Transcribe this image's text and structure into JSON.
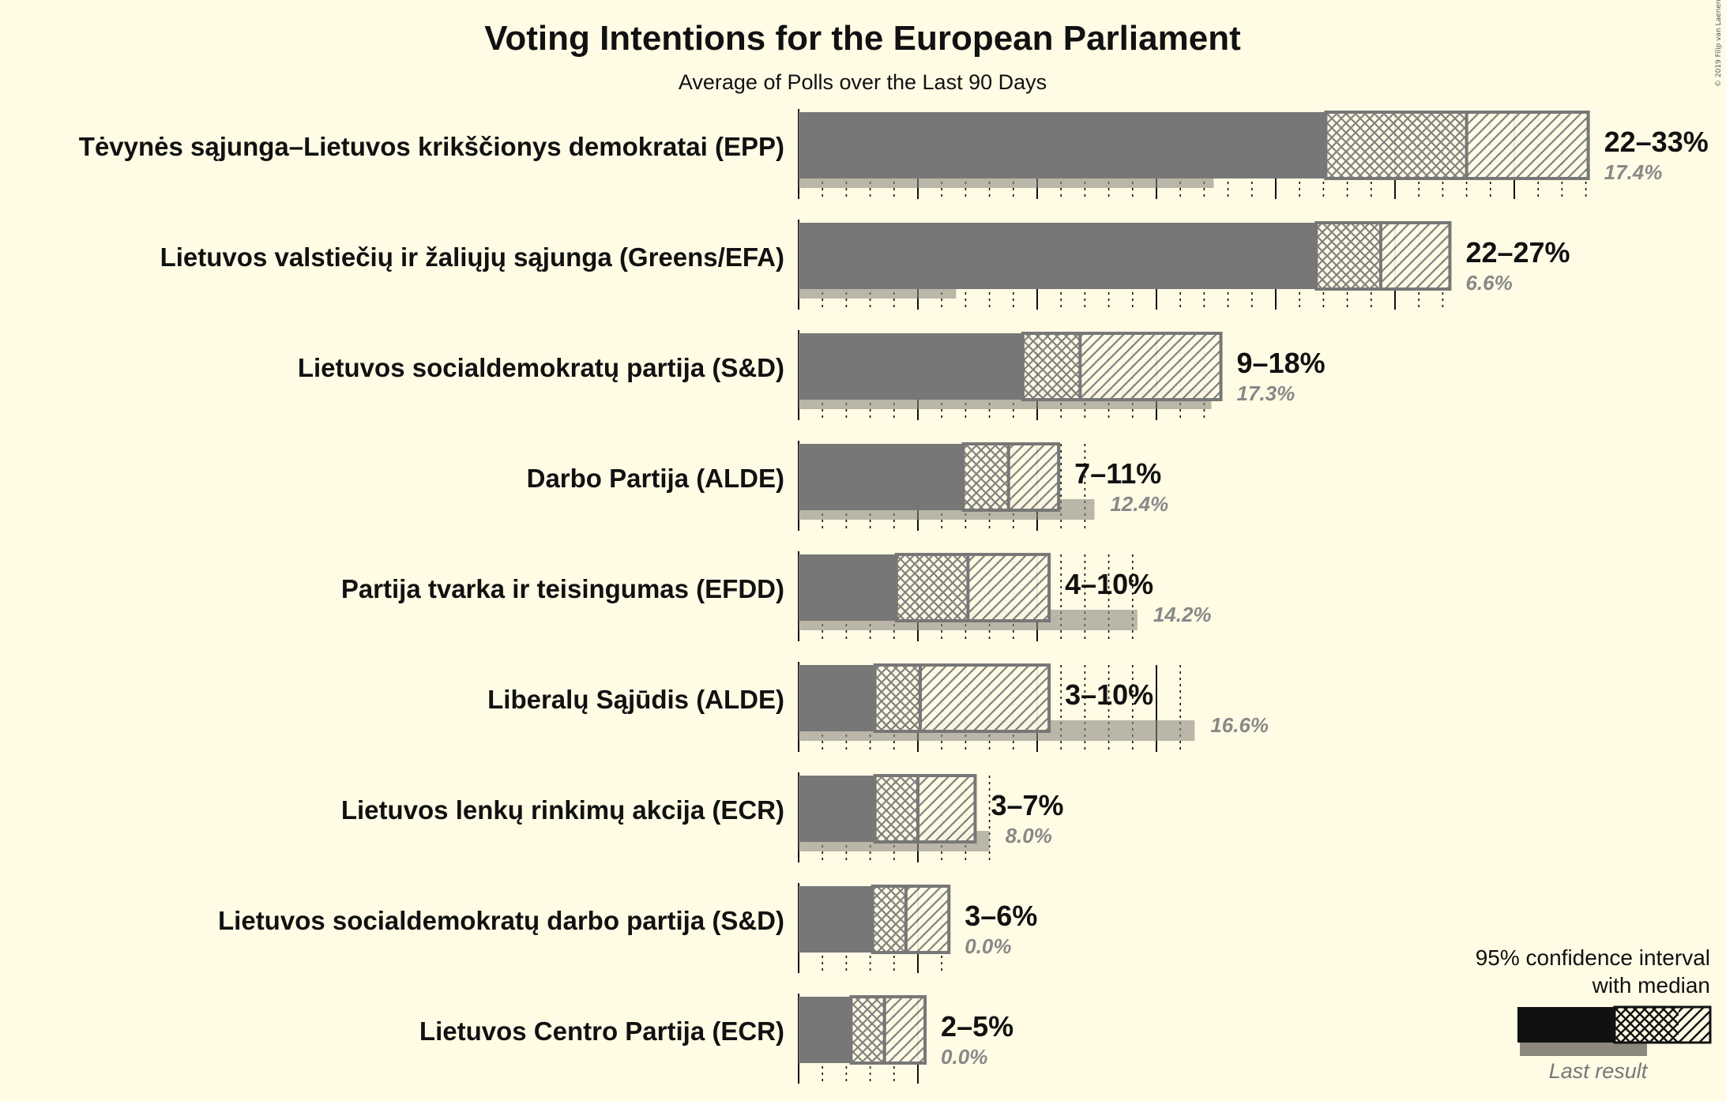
{
  "chart_data": {
    "type": "bar",
    "title": "Voting Intentions for the European Parliament",
    "subtitle": "Average of Polls over the Last 90 Days",
    "copyright": "© 2019 Filip van Laenen",
    "x_range": [
      0,
      35
    ],
    "categories": [
      "Tėvynės sąjunga–Lietuvos krikščionys demokratai (EPP)",
      "Lietuvos valstiečių ir žaliųjų sąjunga (Greens/EFA)",
      "Lietuvos socialdemokratų partija (S&D)",
      "Darbo Partija (ALDE)",
      "Partija tvarka ir teisingumas (EFDD)",
      "Liberalų Sąjūdis (ALDE)",
      "Lietuvos lenkų rinkimų akcija (ECR)",
      "Lietuvos socialdemokratų darbo partija (S&D)",
      "Lietuvos Centro Partija (ECR)"
    ],
    "ci_low": [
      22.1,
      21.7,
      9.4,
      6.9,
      4.1,
      3.2,
      3.2,
      3.1,
      2.2
    ],
    "median": [
      28.0,
      24.4,
      11.8,
      8.8,
      7.1,
      5.1,
      5.0,
      4.5,
      3.6
    ],
    "ci_high": [
      33.1,
      27.3,
      17.7,
      10.9,
      10.5,
      10.5,
      7.4,
      6.3,
      5.3
    ],
    "last_result": [
      17.4,
      6.6,
      17.3,
      12.4,
      14.2,
      16.6,
      8.0,
      0.0,
      0.0
    ],
    "range_labels": [
      "22–33%",
      "22–27%",
      "9–18%",
      "7–11%",
      "4–10%",
      "3–10%",
      "3–7%",
      "3–6%",
      "2–5%"
    ],
    "last_labels": [
      "17.4%",
      "6.6%",
      "17.3%",
      "12.4%",
      "14.2%",
      "16.6%",
      "8.0%",
      "0.0%",
      "0.0%"
    ],
    "legend": {
      "line1": "95% confidence interval",
      "line2": "with median",
      "last": "Last result",
      "position": "bottom-right"
    }
  }
}
